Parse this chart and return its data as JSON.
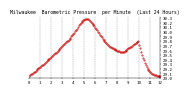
{
  "title_line1": "Milwaukee  Barometric Pressure  per Minute  (Last 24 Hours)",
  "bg_color": "#ffffff",
  "plot_bg_color": "#ffffff",
  "line_color": "#cc0000",
  "grid_color": "#999999",
  "title_fontsize": 3.5,
  "tick_fontsize": 3.0,
  "ylim": [
    29.0,
    30.32
  ],
  "yticks": [
    29.0,
    29.1,
    29.2,
    29.3,
    29.4,
    29.5,
    29.6,
    29.7,
    29.8,
    29.9,
    30.0,
    30.1,
    30.2,
    30.3
  ],
  "x_values": [
    0,
    1,
    2,
    3,
    4,
    5,
    6,
    7,
    8,
    9,
    10,
    11,
    12,
    13,
    14,
    15,
    16,
    17,
    18,
    19,
    20,
    21,
    22,
    23,
    24,
    25,
    26,
    27,
    28,
    29,
    30,
    31,
    32,
    33,
    34,
    35,
    36,
    37,
    38,
    39,
    40,
    41,
    42,
    43,
    44,
    45,
    46,
    47,
    48,
    49,
    50,
    51,
    52,
    53,
    54,
    55,
    56,
    57,
    58,
    59,
    60,
    61,
    62,
    63,
    64,
    65,
    66,
    67,
    68,
    69,
    70,
    71,
    72,
    73,
    74,
    75,
    76,
    77,
    78,
    79,
    80,
    81,
    82,
    83,
    84,
    85,
    86,
    87,
    88,
    89,
    90,
    91,
    92,
    93,
    94,
    95,
    96,
    97,
    98,
    99,
    100,
    101,
    102,
    103,
    104,
    105,
    106,
    107,
    108,
    109,
    110,
    111,
    112,
    113,
    114,
    115,
    116,
    117,
    118,
    119,
    120,
    121,
    122,
    123,
    124,
    125,
    126,
    127,
    128,
    129,
    130,
    131,
    132,
    133,
    134,
    135,
    136,
    137,
    138,
    139,
    140,
    141,
    142,
    143
  ],
  "y_values": [
    29.05,
    29.07,
    29.08,
    29.09,
    29.1,
    29.12,
    29.13,
    29.15,
    29.17,
    29.19,
    29.21,
    29.22,
    29.24,
    29.26,
    29.28,
    29.29,
    29.31,
    29.33,
    29.35,
    29.37,
    29.38,
    29.4,
    29.42,
    29.44,
    29.46,
    29.47,
    29.49,
    29.51,
    29.53,
    29.55,
    29.57,
    29.59,
    29.61,
    29.63,
    29.65,
    29.67,
    29.69,
    29.71,
    29.73,
    29.75,
    29.77,
    29.79,
    29.81,
    29.83,
    29.85,
    29.87,
    29.9,
    29.92,
    29.95,
    29.98,
    30.01,
    30.04,
    30.07,
    30.1,
    30.14,
    30.17,
    30.2,
    30.22,
    30.24,
    30.25,
    30.26,
    30.27,
    30.28,
    30.28,
    30.27,
    30.26,
    30.24,
    30.22,
    30.2,
    30.17,
    30.15,
    30.12,
    30.09,
    30.06,
    30.03,
    30.0,
    29.97,
    29.94,
    29.91,
    29.88,
    29.85,
    29.82,
    29.8,
    29.77,
    29.75,
    29.73,
    29.71,
    29.7,
    29.68,
    29.67,
    29.65,
    29.64,
    29.63,
    29.62,
    29.61,
    29.6,
    29.59,
    29.58,
    29.58,
    29.57,
    29.57,
    29.56,
    29.56,
    29.57,
    29.58,
    29.59,
    29.6,
    29.62,
    29.64,
    29.65,
    29.67,
    29.68,
    29.7,
    29.71,
    29.73,
    29.74,
    29.75,
    29.77,
    29.78,
    29.8,
    29.72,
    29.64,
    29.57,
    29.5,
    29.44,
    29.38,
    29.33,
    29.28,
    29.24,
    29.2,
    29.17,
    29.14,
    29.12,
    29.1,
    29.09,
    29.08,
    29.07,
    29.06,
    29.06,
    29.05,
    29.05,
    29.05,
    29.05,
    29.04
  ],
  "xtick_positions": [
    0,
    12,
    24,
    36,
    48,
    60,
    72,
    84,
    96,
    108,
    120,
    132,
    143
  ],
  "xtick_labels": [
    "0",
    "1",
    "2",
    "3",
    "4",
    "5",
    "6",
    "7",
    "8",
    "9",
    "10",
    "11",
    "12"
  ],
  "vgrid_positions": [
    12,
    24,
    36,
    48,
    60,
    72,
    84,
    96,
    108,
    120,
    132
  ]
}
